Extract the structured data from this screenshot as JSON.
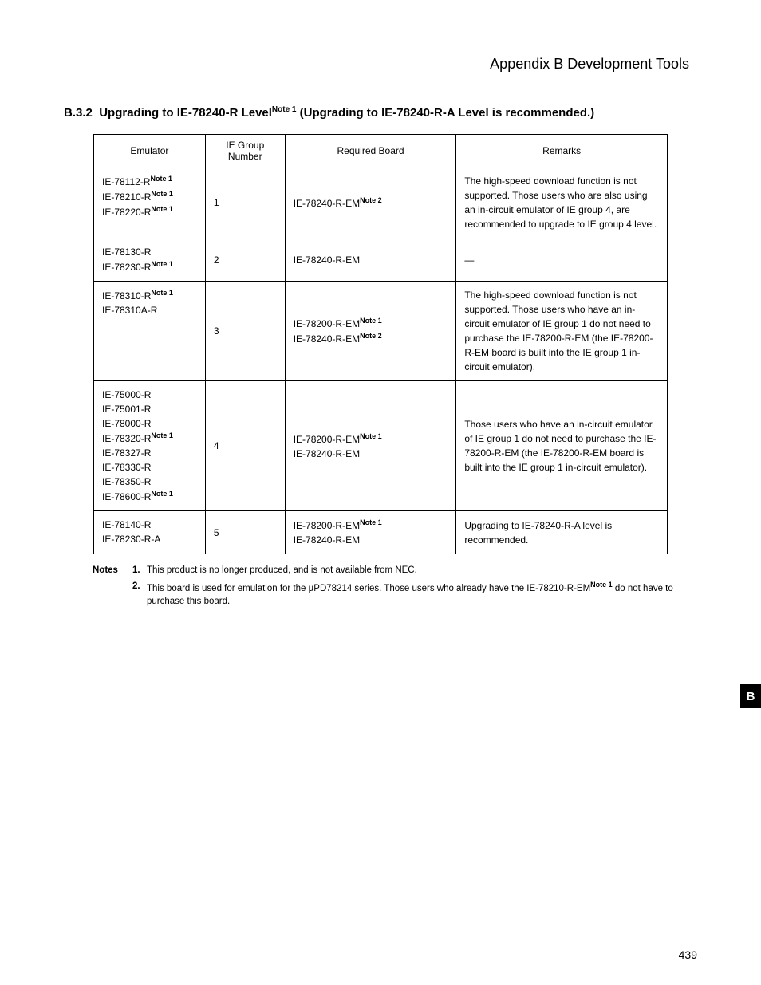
{
  "header": {
    "appendix_title": "Appendix B   Development Tools"
  },
  "section": {
    "number": "B.3.2",
    "title_pre": "Upgrading to IE-78240-R Level",
    "title_note": "Note 1",
    "title_post": " (Upgrading to IE-78240-R-A Level is recommended.)"
  },
  "table": {
    "headers": {
      "emulator": "Emulator",
      "group": "IE Group Number",
      "board": "Required Board",
      "remarks": "Remarks"
    },
    "rows": [
      {
        "emulators": [
          {
            "name": "IE-78112-R",
            "note": "Note 1"
          },
          {
            "name": "IE-78210-R",
            "note": "Note 1"
          },
          {
            "name": "IE-78220-R",
            "note": "Note 1"
          }
        ],
        "group": "1",
        "boards": [
          {
            "name": "IE-78240-R-EM",
            "note": "Note 2"
          }
        ],
        "remarks": "The high-speed download function is not supported.  Those users who are also using an in-circuit emulator of IE group 4, are recommended to upgrade to IE group 4 level."
      },
      {
        "emulators": [
          {
            "name": "IE-78130-R",
            "note": ""
          },
          {
            "name": "IE-78230-R",
            "note": "Note 1"
          }
        ],
        "group": "2",
        "boards": [
          {
            "name": "IE-78240-R-EM",
            "note": ""
          }
        ],
        "remarks": "—",
        "remarks_centered": true
      },
      {
        "emulators": [
          {
            "name": "IE-78310-R",
            "note": "Note 1"
          },
          {
            "name": "IE-78310A-R",
            "note": ""
          }
        ],
        "group": "3",
        "boards": [
          {
            "name": "IE-78200-R-EM",
            "note": "Note 1"
          },
          {
            "name": "IE-78240-R-EM",
            "note": "Note 2"
          }
        ],
        "remarks": "The high-speed download function is not supported.  Those users who have an in-circuit emulator of IE group 1 do not need to purchase the IE-78200-R-EM (the IE-78200-R-EM board is built into the IE group 1 in-circuit emulator)."
      },
      {
        "emulators": [
          {
            "name": "IE-75000-R",
            "note": ""
          },
          {
            "name": "IE-75001-R",
            "note": ""
          },
          {
            "name": "IE-78000-R",
            "note": ""
          },
          {
            "name": "IE-78320-R",
            "note": "Note 1"
          },
          {
            "name": "IE-78327-R",
            "note": ""
          },
          {
            "name": "IE-78330-R",
            "note": ""
          },
          {
            "name": "IE-78350-R",
            "note": ""
          },
          {
            "name": "IE-78600-R",
            "note": "Note 1"
          }
        ],
        "group": "4",
        "boards": [
          {
            "name": "IE-78200-R-EM",
            "note": "Note 1"
          },
          {
            "name": "IE-78240-R-EM",
            "note": ""
          }
        ],
        "remarks": "Those users who have an in-circuit emulator of IE group 1 do not need to purchase the IE-78200-R-EM (the IE-78200-R-EM board is built into the IE group 1 in-circuit emulator)."
      },
      {
        "emulators": [
          {
            "name": "IE-78140-R",
            "note": ""
          },
          {
            "name": "IE-78230-R-A",
            "note": ""
          }
        ],
        "group": "5",
        "boards": [
          {
            "name": "IE-78200-R-EM",
            "note": "Note 1"
          },
          {
            "name": "IE-78240-R-EM",
            "note": ""
          }
        ],
        "remarks": "Upgrading to IE-78240-R-A level is recommended."
      }
    ]
  },
  "notes": {
    "label": "Notes",
    "items": [
      {
        "num": "1.",
        "text": "This product is no longer produced, and is not available from NEC."
      },
      {
        "num": "2.",
        "text_pre": "This board is used for emulation for the ",
        "mu": "µ",
        "text_mid": "PD78214 series.  Those users who already have the IE-78210-R-EM",
        "sup": "Note 1",
        "text_post": " do not have to purchase this board."
      }
    ]
  },
  "side_tab": "B",
  "page_number": "439"
}
